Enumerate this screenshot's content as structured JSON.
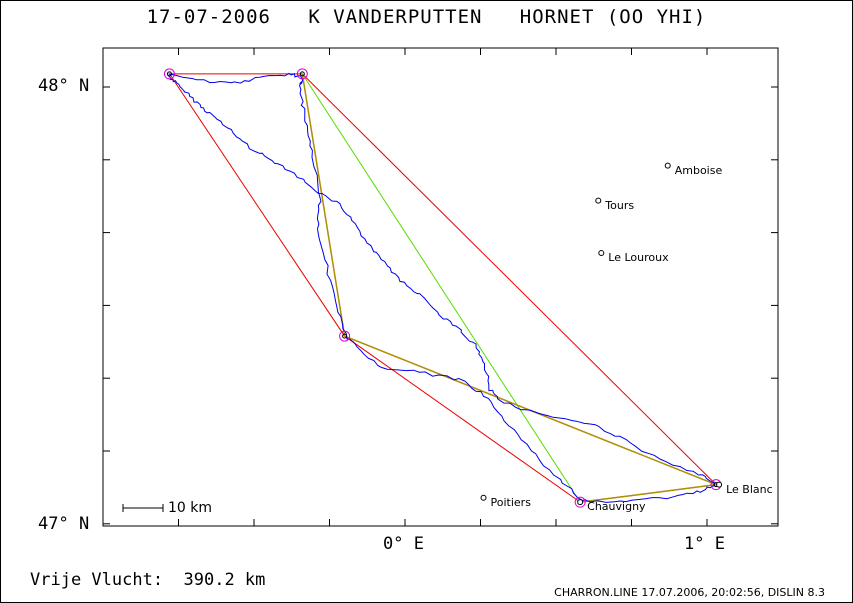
{
  "title": "17-07-2006   K VANDERPUTTEN   HORNET (OO YHI)",
  "axes": {
    "y_ticks": [
      "48° N",
      "47° N"
    ],
    "x_ticks": [
      "0° E",
      "1° E"
    ]
  },
  "scale_bar": {
    "label": "10 km"
  },
  "places": [
    {
      "name": "Amboise",
      "lon": 0.87,
      "lat": 47.82
    },
    {
      "name": "Tours",
      "lon": 0.64,
      "lat": 47.74
    },
    {
      "name": "Le Louroux",
      "lon": 0.65,
      "lat": 47.62
    },
    {
      "name": "Poitiers",
      "lon": 0.26,
      "lat": 47.06
    },
    {
      "name": "Chauvigny",
      "lon": 0.58,
      "lat": 47.05
    },
    {
      "name": "Le Blanc",
      "lon": 1.04,
      "lat": 47.09
    }
  ],
  "turnpoints": [
    {
      "lon": -0.78,
      "lat": 48.03
    },
    {
      "lon": -0.34,
      "lat": 48.03
    },
    {
      "lon": -0.2,
      "lat": 47.43
    },
    {
      "lon": 0.58,
      "lat": 47.05
    },
    {
      "lon": 1.03,
      "lat": 47.09
    }
  ],
  "colors": {
    "track": "#0000ee",
    "red_route": "#ee0000",
    "green_route": "#55dd00",
    "orange_route": "#cc7700",
    "turnpoint": "#dd00dd"
  },
  "footer": {
    "distance": "Vrije Vlucht:  390.2 km",
    "program": "CHARRON.LINE 17.07.2006, 20:02:56, DISLIN 8.3"
  }
}
